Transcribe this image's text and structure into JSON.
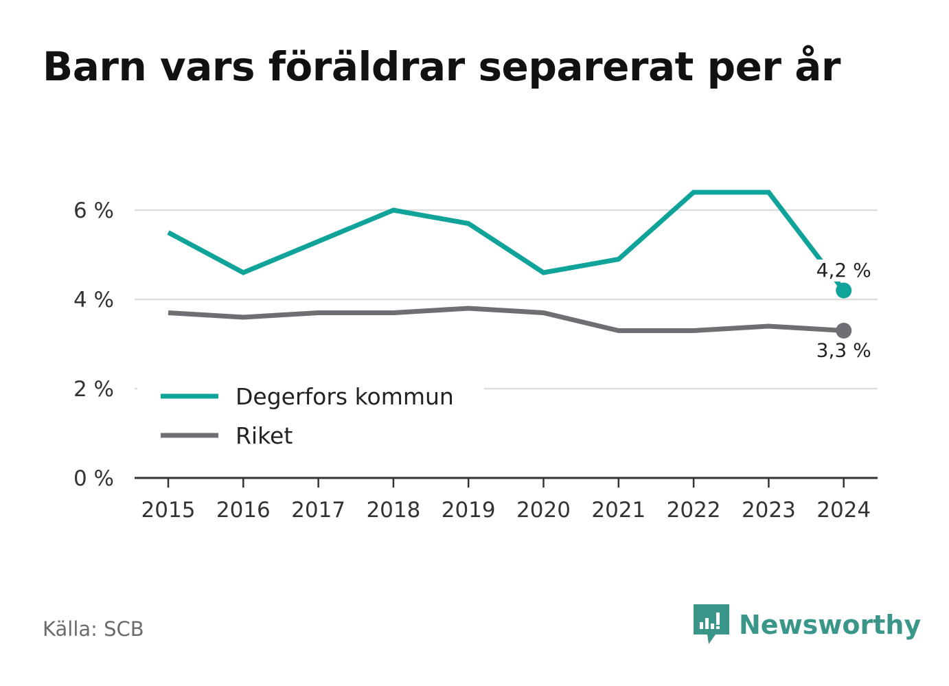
{
  "title": "Barn vars föräldrar separerat per år",
  "source": "Källa: SCB",
  "brand": {
    "name": "Newsworthy",
    "icon": "newsworthy-logo-icon",
    "color": "#3a9688"
  },
  "chart_data": {
    "type": "line",
    "title": "Barn vars föräldrar separerat per år",
    "xlabel": "",
    "ylabel": "",
    "x": [
      "2015",
      "2016",
      "2017",
      "2018",
      "2019",
      "2020",
      "2021",
      "2022",
      "2023",
      "2024"
    ],
    "ylim": [
      0,
      7
    ],
    "yticks": [
      0,
      2,
      4,
      6
    ],
    "ytick_labels": [
      "0 %",
      "2 %",
      "4 %",
      "6 %"
    ],
    "grid": true,
    "legend": "bottom-left",
    "series": [
      {
        "name": "Degerfors kommun",
        "color": "#0fa39a",
        "values": [
          5.5,
          4.6,
          5.3,
          6.0,
          5.7,
          4.6,
          4.9,
          6.4,
          6.4,
          4.2
        ],
        "end_label": "4,2 %"
      },
      {
        "name": "Riket",
        "color": "#6e6e74",
        "values": [
          3.7,
          3.6,
          3.7,
          3.7,
          3.8,
          3.7,
          3.3,
          3.3,
          3.4,
          3.3
        ],
        "end_label": "3,3 %"
      }
    ]
  }
}
